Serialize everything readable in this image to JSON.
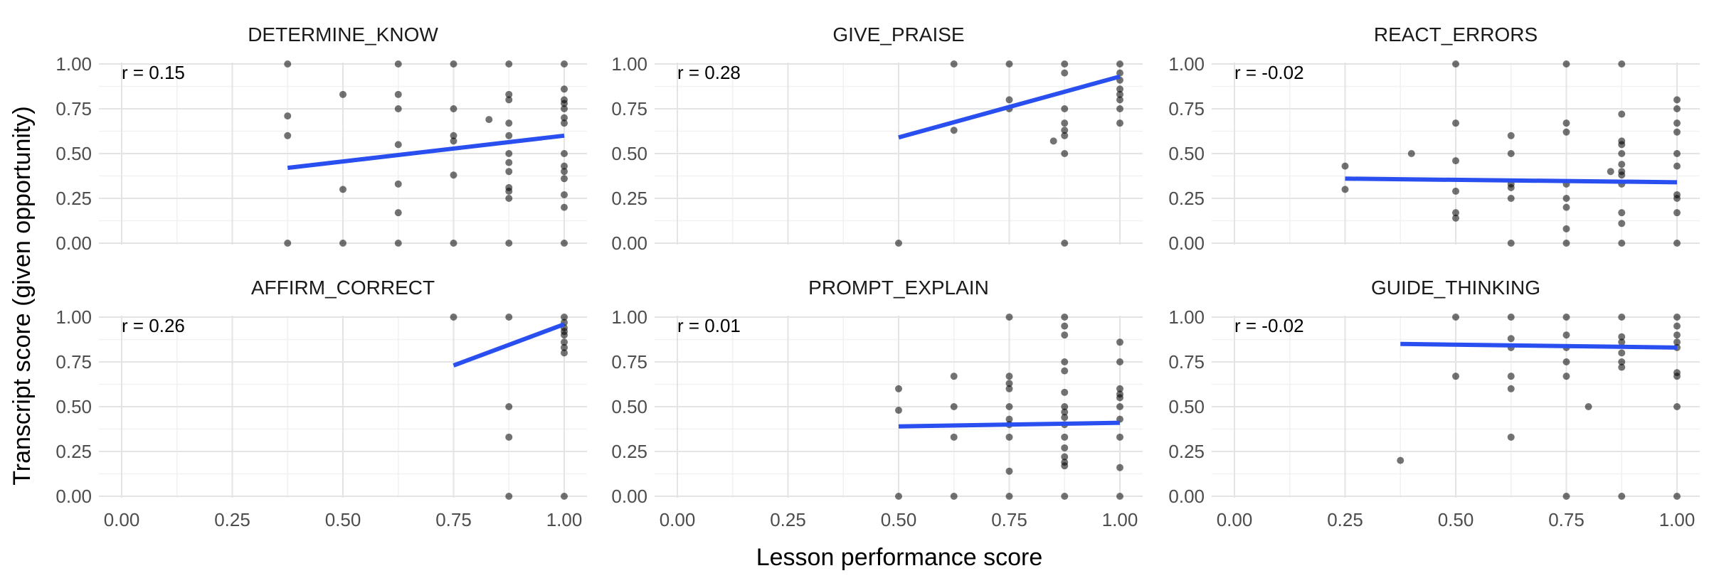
{
  "figure": {
    "xlabel": "Lesson performance score",
    "ylabel": "Transcript score (given opportunity)"
  },
  "style": {
    "point_color": "#000000",
    "point_opacity": 0.55,
    "fit_color": "#2a4ff0",
    "grid_major": "#e4e4e4",
    "grid_minor": "#f1f1f1",
    "background": "#ffffff"
  },
  "chart_data": [
    {
      "type": "scatter",
      "title": "DETERMINE_KNOW",
      "annotation": "r = 0.15",
      "xlim": [
        0,
        1
      ],
      "ylim": [
        0,
        1
      ],
      "x_ticks": [
        "0.00",
        "0.25",
        "0.50",
        "0.75",
        "1.00"
      ],
      "y_ticks": [
        "0.00",
        "0.25",
        "0.50",
        "0.75",
        "1.00"
      ],
      "fit_line": {
        "x": [
          0.375,
          1.0
        ],
        "y": [
          0.42,
          0.6
        ]
      },
      "points": [
        [
          0.375,
          1.0
        ],
        [
          0.375,
          0.71
        ],
        [
          0.375,
          0.6
        ],
        [
          0.375,
          0.0
        ],
        [
          0.5,
          0.83
        ],
        [
          0.5,
          0.3
        ],
        [
          0.5,
          0.0
        ],
        [
          0.625,
          1.0
        ],
        [
          0.625,
          0.83
        ],
        [
          0.625,
          0.75
        ],
        [
          0.625,
          0.55
        ],
        [
          0.625,
          0.33
        ],
        [
          0.625,
          0.17
        ],
        [
          0.625,
          0.0
        ],
        [
          0.75,
          1.0
        ],
        [
          0.75,
          0.75
        ],
        [
          0.75,
          0.6
        ],
        [
          0.75,
          0.57
        ],
        [
          0.75,
          0.38
        ],
        [
          0.75,
          0.0
        ],
        [
          0.83,
          0.69
        ],
        [
          0.875,
          1.0
        ],
        [
          0.875,
          0.83
        ],
        [
          0.875,
          0.8
        ],
        [
          0.875,
          0.67
        ],
        [
          0.875,
          0.6
        ],
        [
          0.875,
          0.5
        ],
        [
          0.875,
          0.45
        ],
        [
          0.875,
          0.4
        ],
        [
          0.875,
          0.31
        ],
        [
          0.875,
          0.29
        ],
        [
          0.875,
          0.25
        ],
        [
          0.875,
          0.0
        ],
        [
          1.0,
          1.0
        ],
        [
          1.0,
          0.86
        ],
        [
          1.0,
          0.8
        ],
        [
          1.0,
          0.78
        ],
        [
          1.0,
          0.75
        ],
        [
          1.0,
          0.7
        ],
        [
          1.0,
          0.67
        ],
        [
          1.0,
          0.5
        ],
        [
          1.0,
          0.43
        ],
        [
          1.0,
          0.4
        ],
        [
          1.0,
          0.36
        ],
        [
          1.0,
          0.27
        ],
        [
          1.0,
          0.2
        ],
        [
          1.0,
          0.0
        ]
      ]
    },
    {
      "type": "scatter",
      "title": "GIVE_PRAISE",
      "annotation": "r = 0.28",
      "xlim": [
        0,
        1
      ],
      "ylim": [
        0,
        1
      ],
      "x_ticks": [
        "0.00",
        "0.25",
        "0.50",
        "0.75",
        "1.00"
      ],
      "y_ticks": [
        "0.00",
        "0.25",
        "0.50",
        "0.75",
        "1.00"
      ],
      "fit_line": {
        "x": [
          0.5,
          1.0
        ],
        "y": [
          0.59,
          0.93
        ]
      },
      "points": [
        [
          0.5,
          0.0
        ],
        [
          0.625,
          1.0
        ],
        [
          0.625,
          0.63
        ],
        [
          0.75,
          1.0
        ],
        [
          0.75,
          0.8
        ],
        [
          0.75,
          0.75
        ],
        [
          0.85,
          0.57
        ],
        [
          0.875,
          1.0
        ],
        [
          0.875,
          0.95
        ],
        [
          0.875,
          0.75
        ],
        [
          0.875,
          0.67
        ],
        [
          0.875,
          0.63
        ],
        [
          0.875,
          0.6
        ],
        [
          0.875,
          0.5
        ],
        [
          0.875,
          0.0
        ],
        [
          1.0,
          1.0
        ],
        [
          1.0,
          0.95
        ],
        [
          1.0,
          0.91
        ],
        [
          1.0,
          0.86
        ],
        [
          1.0,
          0.83
        ],
        [
          1.0,
          0.8
        ],
        [
          1.0,
          0.75
        ],
        [
          1.0,
          0.67
        ]
      ]
    },
    {
      "type": "scatter",
      "title": "REACT_ERRORS",
      "annotation": "r = -0.02",
      "xlim": [
        0,
        1
      ],
      "ylim": [
        0,
        1
      ],
      "x_ticks": [
        "0.00",
        "0.25",
        "0.50",
        "0.75",
        "1.00"
      ],
      "y_ticks": [
        "0.00",
        "0.25",
        "0.50",
        "0.75",
        "1.00"
      ],
      "fit_line": {
        "x": [
          0.25,
          1.0
        ],
        "y": [
          0.36,
          0.34
        ]
      },
      "points": [
        [
          0.25,
          0.43
        ],
        [
          0.25,
          0.3
        ],
        [
          0.4,
          0.5
        ],
        [
          0.5,
          1.0
        ],
        [
          0.5,
          0.67
        ],
        [
          0.5,
          0.46
        ],
        [
          0.5,
          0.29
        ],
        [
          0.5,
          0.17
        ],
        [
          0.5,
          0.14
        ],
        [
          0.625,
          0.6
        ],
        [
          0.625,
          0.5
        ],
        [
          0.625,
          0.33
        ],
        [
          0.625,
          0.31
        ],
        [
          0.625,
          0.25
        ],
        [
          0.625,
          0.0
        ],
        [
          0.75,
          1.0
        ],
        [
          0.75,
          0.67
        ],
        [
          0.75,
          0.62
        ],
        [
          0.75,
          0.33
        ],
        [
          0.75,
          0.25
        ],
        [
          0.75,
          0.2
        ],
        [
          0.75,
          0.08
        ],
        [
          0.75,
          0.0
        ],
        [
          0.85,
          0.4
        ],
        [
          0.875,
          1.0
        ],
        [
          0.875,
          0.72
        ],
        [
          0.875,
          0.57
        ],
        [
          0.875,
          0.55
        ],
        [
          0.875,
          0.5
        ],
        [
          0.875,
          0.44
        ],
        [
          0.875,
          0.4
        ],
        [
          0.875,
          0.38
        ],
        [
          0.875,
          0.33
        ],
        [
          0.875,
          0.17
        ],
        [
          0.875,
          0.11
        ],
        [
          0.875,
          0.0
        ],
        [
          1.0,
          0.8
        ],
        [
          1.0,
          0.75
        ],
        [
          1.0,
          0.67
        ],
        [
          1.0,
          0.62
        ],
        [
          1.0,
          0.5
        ],
        [
          1.0,
          0.43
        ],
        [
          1.0,
          0.27
        ],
        [
          1.0,
          0.25
        ],
        [
          1.0,
          0.17
        ],
        [
          1.0,
          0.0
        ]
      ]
    },
    {
      "type": "scatter",
      "title": "AFFIRM_CORRECT",
      "annotation": "r = 0.26",
      "xlim": [
        0,
        1
      ],
      "ylim": [
        0,
        1
      ],
      "x_ticks": [
        "0.00",
        "0.25",
        "0.50",
        "0.75",
        "1.00"
      ],
      "y_ticks": [
        "0.00",
        "0.25",
        "0.50",
        "0.75",
        "1.00"
      ],
      "fit_line": {
        "x": [
          0.75,
          1.0
        ],
        "y": [
          0.73,
          0.96
        ]
      },
      "points": [
        [
          0.75,
          1.0
        ],
        [
          0.875,
          1.0
        ],
        [
          0.875,
          0.5
        ],
        [
          0.875,
          0.33
        ],
        [
          0.875,
          0.0
        ],
        [
          1.0,
          1.0
        ],
        [
          1.0,
          0.97
        ],
        [
          1.0,
          0.94
        ],
        [
          1.0,
          0.92
        ],
        [
          1.0,
          0.9
        ],
        [
          1.0,
          0.86
        ],
        [
          1.0,
          0.83
        ],
        [
          1.0,
          0.8
        ],
        [
          1.0,
          0.0
        ]
      ]
    },
    {
      "type": "scatter",
      "title": "PROMPT_EXPLAIN",
      "annotation": "r = 0.01",
      "xlim": [
        0,
        1
      ],
      "ylim": [
        0,
        1
      ],
      "x_ticks": [
        "0.00",
        "0.25",
        "0.50",
        "0.75",
        "1.00"
      ],
      "y_ticks": [
        "0.00",
        "0.25",
        "0.50",
        "0.75",
        "1.00"
      ],
      "fit_line": {
        "x": [
          0.5,
          1.0
        ],
        "y": [
          0.39,
          0.41
        ]
      },
      "points": [
        [
          0.5,
          0.6
        ],
        [
          0.5,
          0.48
        ],
        [
          0.5,
          0.0
        ],
        [
          0.625,
          0.67
        ],
        [
          0.625,
          0.5
        ],
        [
          0.625,
          0.33
        ],
        [
          0.625,
          0.0
        ],
        [
          0.75,
          1.0
        ],
        [
          0.75,
          0.67
        ],
        [
          0.75,
          0.63
        ],
        [
          0.75,
          0.6
        ],
        [
          0.75,
          0.5
        ],
        [
          0.75,
          0.43
        ],
        [
          0.75,
          0.4
        ],
        [
          0.75,
          0.33
        ],
        [
          0.75,
          0.14
        ],
        [
          0.75,
          0.0
        ],
        [
          0.875,
          1.0
        ],
        [
          0.875,
          0.95
        ],
        [
          0.875,
          0.9
        ],
        [
          0.875,
          0.75
        ],
        [
          0.875,
          0.7
        ],
        [
          0.875,
          0.58
        ],
        [
          0.875,
          0.5
        ],
        [
          0.875,
          0.47
        ],
        [
          0.875,
          0.44
        ],
        [
          0.875,
          0.4
        ],
        [
          0.875,
          0.33
        ],
        [
          0.875,
          0.27
        ],
        [
          0.875,
          0.22
        ],
        [
          0.875,
          0.19
        ],
        [
          0.875,
          0.17
        ],
        [
          0.875,
          0.0
        ],
        [
          1.0,
          0.86
        ],
        [
          1.0,
          0.75
        ],
        [
          1.0,
          0.6
        ],
        [
          1.0,
          0.57
        ],
        [
          1.0,
          0.55
        ],
        [
          1.0,
          0.5
        ],
        [
          1.0,
          0.43
        ],
        [
          1.0,
          0.33
        ],
        [
          1.0,
          0.16
        ],
        [
          1.0,
          0.0
        ]
      ]
    },
    {
      "type": "scatter",
      "title": "GUIDE_THINKING",
      "annotation": "r = -0.02",
      "xlim": [
        0,
        1
      ],
      "ylim": [
        0,
        1
      ],
      "x_ticks": [
        "0.00",
        "0.25",
        "0.50",
        "0.75",
        "1.00"
      ],
      "y_ticks": [
        "0.00",
        "0.25",
        "0.50",
        "0.75",
        "1.00"
      ],
      "fit_line": {
        "x": [
          0.375,
          1.0
        ],
        "y": [
          0.85,
          0.83
        ]
      },
      "points": [
        [
          0.375,
          0.2
        ],
        [
          0.5,
          1.0
        ],
        [
          0.5,
          0.67
        ],
        [
          0.625,
          1.0
        ],
        [
          0.625,
          0.88
        ],
        [
          0.625,
          0.83
        ],
        [
          0.625,
          0.67
        ],
        [
          0.625,
          0.6
        ],
        [
          0.625,
          0.33
        ],
        [
          0.75,
          1.0
        ],
        [
          0.75,
          0.9
        ],
        [
          0.75,
          0.83
        ],
        [
          0.75,
          0.75
        ],
        [
          0.75,
          0.67
        ],
        [
          0.75,
          0.0
        ],
        [
          0.8,
          0.5
        ],
        [
          0.875,
          1.0
        ],
        [
          0.875,
          0.89
        ],
        [
          0.875,
          0.86
        ],
        [
          0.875,
          0.8
        ],
        [
          0.875,
          0.75
        ],
        [
          0.875,
          0.72
        ],
        [
          0.875,
          0.0
        ],
        [
          1.0,
          1.0
        ],
        [
          1.0,
          0.95
        ],
        [
          1.0,
          0.9
        ],
        [
          1.0,
          0.86
        ],
        [
          1.0,
          0.83
        ],
        [
          1.0,
          0.69
        ],
        [
          1.0,
          0.67
        ],
        [
          1.0,
          0.5
        ],
        [
          1.0,
          0.0
        ]
      ]
    }
  ]
}
